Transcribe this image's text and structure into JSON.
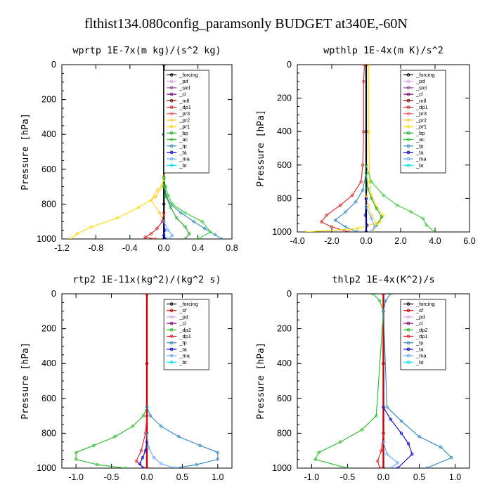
{
  "title": "flthist134.080config_paramsonly  BUDGET at340E,-60N",
  "colors": {
    "_forcing": "#000000",
    "_sf": "#cc0000",
    "_pd": "#d8a0e0",
    "_sicl": "#8a4a9a",
    "_cl": "#800080",
    "_mfl": "#800000",
    "_dp1": "#e02020",
    "_dp2": "#22bb22",
    "_pr3": "#ff6666",
    "_pr2": "#ffcc33",
    "_pr1": "#ffd700",
    "_bp": "#22aa22",
    "_ac": "#33cc33",
    "_tp": "#2e86c1",
    "_ta": "#0000cc",
    "_ma": "#66aaff",
    "_bt": "#00e5ee"
  },
  "chart_data": [
    {
      "type": "line",
      "title": "wprtp   1E-7x(m kg)/(s^2 kg)",
      "ylabel": "Pressure [hPa]",
      "xlim": [
        -1.2,
        0.8
      ],
      "ylim": [
        1000,
        0
      ],
      "xticks": [
        -1.2,
        -0.8,
        -0.4,
        0.0,
        0.4,
        0.8
      ],
      "xticklabels": [
        "-1.2",
        "-0.8",
        "-0.4",
        "0.0",
        "0.4",
        "0.8"
      ],
      "yticks": [
        0,
        200,
        400,
        600,
        800,
        1000
      ],
      "legend": [
        "_forcing",
        "_pd",
        "_sicl",
        "_cl",
        "_mfl",
        "_dp1",
        "_pr3",
        "_pr2",
        "_pr1",
        "_bp",
        "_ac",
        "_tp",
        "_ta",
        "_ma",
        "_bt"
      ],
      "series": [
        {
          "name": "_forcing",
          "x": [
            0,
            0,
            0,
            0
          ],
          "y": [
            0,
            400,
            800,
            1000
          ]
        },
        {
          "name": "_pr1",
          "x": [
            0,
            -0.02,
            -0.1,
            -0.3,
            -0.55,
            -0.85,
            -1.02,
            -1.1
          ],
          "y": [
            650,
            700,
            760,
            820,
            880,
            930,
            970,
            1000
          ]
        },
        {
          "name": "_pr2",
          "x": [
            0,
            -0.02,
            -0.08,
            -0.15,
            -0.05,
            0
          ],
          "y": [
            640,
            690,
            720,
            780,
            850,
            900
          ]
        },
        {
          "name": "_dp1",
          "x": [
            0,
            -0.02,
            -0.08,
            -0.15,
            -0.22,
            -0.1
          ],
          "y": [
            850,
            900,
            940,
            970,
            990,
            1000
          ]
        },
        {
          "name": "_tp",
          "x": [
            0,
            0.02,
            0.08,
            0.2,
            0.35,
            0.48,
            0.6,
            0.68
          ],
          "y": [
            700,
            750,
            800,
            850,
            900,
            940,
            975,
            1000
          ]
        },
        {
          "name": "_ac",
          "x": [
            0,
            0.02,
            0.05,
            0.1,
            0.25,
            0.45,
            0.55,
            0.4
          ],
          "y": [
            650,
            700,
            750,
            800,
            850,
            900,
            960,
            1000
          ]
        },
        {
          "name": "_bp",
          "x": [
            0,
            0.01,
            0.03,
            0.08,
            0.15,
            0.25,
            0.3,
            0.25
          ],
          "y": [
            650,
            700,
            760,
            820,
            880,
            930,
            970,
            1000
          ]
        },
        {
          "name": "_ta",
          "x": [
            0,
            0.01,
            0,
            0.02
          ],
          "y": [
            900,
            950,
            980,
            1000
          ]
        },
        {
          "name": "_ma",
          "x": [
            0,
            0.05,
            0.1,
            0.05
          ],
          "y": [
            900,
            950,
            980,
            1000
          ]
        }
      ]
    },
    {
      "type": "line",
      "title": "wpthlp   1E-4x(m K)/s^2",
      "ylabel": "Pressure [hPa]",
      "xlim": [
        -4.0,
        6.0
      ],
      "ylim": [
        1000,
        0
      ],
      "xticks": [
        -4,
        -2,
        0,
        2,
        4,
        6
      ],
      "xticklabels": [
        "-4.0",
        "-2.0",
        "0.0",
        "2.0",
        "4.0",
        "6.0"
      ],
      "yticks": [
        0,
        200,
        400,
        600,
        800,
        1000
      ],
      "legend": [
        "_forcing",
        "_pd",
        "_sicl",
        "_cl",
        "_mfl",
        "_dp1",
        "_pr3",
        "_pr2",
        "_pr1",
        "_bp",
        "_ac",
        "_tp",
        "_ta",
        "_ma",
        "_bt"
      ],
      "series": [
        {
          "name": "_forcing",
          "x": [
            0,
            0,
            0,
            0
          ],
          "y": [
            0,
            400,
            800,
            1000
          ]
        },
        {
          "name": "_dp1",
          "x": [
            -0.1,
            -0.15,
            -0.15,
            -0.2,
            -0.3,
            -0.8,
            -1.5,
            -2.3,
            -2.6,
            -2.0,
            -1.0
          ],
          "y": [
            0,
            100,
            400,
            600,
            700,
            780,
            840,
            900,
            940,
            970,
            1000
          ]
        },
        {
          "name": "_tp",
          "x": [
            0,
            -0.2,
            -0.6,
            -1.2,
            -1.8,
            -1.2,
            -0.5
          ],
          "y": [
            650,
            750,
            820,
            880,
            930,
            970,
            1000
          ]
        },
        {
          "name": "_pr1",
          "x": [
            0.15,
            0.15,
            0.2,
            0.3,
            0.6,
            1.0,
            0.8,
            -0.5,
            -3.5
          ],
          "y": [
            0,
            400,
            700,
            780,
            850,
            900,
            940,
            980,
            1000
          ]
        },
        {
          "name": "_ac",
          "x": [
            0,
            0.3,
            1.0,
            1.8,
            2.6,
            3.3,
            3.5,
            4.0
          ],
          "y": [
            600,
            700,
            780,
            840,
            880,
            920,
            960,
            1000
          ]
        },
        {
          "name": "_bp",
          "x": [
            0,
            0.1,
            0.3,
            0.6,
            0.9,
            0.6,
            0.3
          ],
          "y": [
            650,
            740,
            800,
            860,
            910,
            960,
            1000
          ]
        },
        {
          "name": "_pr2",
          "x": [
            0,
            0.1,
            0.3,
            0.6,
            0.4
          ],
          "y": [
            780,
            840,
            900,
            950,
            1000
          ]
        },
        {
          "name": "_ta",
          "x": [
            0,
            -0.05,
            0.05,
            0
          ],
          "y": [
            800,
            900,
            960,
            1000
          ]
        },
        {
          "name": "_ma",
          "x": [
            0,
            0.3,
            0.5,
            0.3
          ],
          "y": [
            850,
            920,
            970,
            1000
          ]
        }
      ]
    },
    {
      "type": "line",
      "title": "rtp2   1E-11x(kg^2)/(kg^2 s)",
      "ylabel": "Pressure [hPa]",
      "xlim": [
        -1.2,
        1.2
      ],
      "ylim": [
        1000,
        0
      ],
      "xticks": [
        -1.0,
        -0.5,
        0.0,
        0.5,
        1.0
      ],
      "xticklabels": [
        "-1.0",
        "-0.5",
        "0.0",
        "0.5",
        "1.0"
      ],
      "yticks": [
        0,
        200,
        400,
        600,
        800,
        1000
      ],
      "legend": [
        "_forcing",
        "_sf",
        "_pd",
        "_cl",
        "_dp2",
        "_dp1",
        "_tp",
        "_ta",
        "_ma",
        "_bt"
      ],
      "series": [
        {
          "name": "_forcing",
          "x": [
            0,
            0,
            0,
            0
          ],
          "y": [
            0,
            400,
            800,
            1000
          ]
        },
        {
          "name": "_sf",
          "x": [
            0,
            0,
            0,
            0
          ],
          "y": [
            0,
            400,
            800,
            1000
          ]
        },
        {
          "name": "_dp2",
          "x": [
            0,
            -0.05,
            -0.2,
            -0.45,
            -0.75,
            -1.0,
            -1.0,
            -0.7,
            -0.3
          ],
          "y": [
            650,
            700,
            760,
            820,
            870,
            910,
            950,
            980,
            1000
          ]
        },
        {
          "name": "_dp1",
          "x": [
            0,
            -0.02,
            -0.08,
            -0.15,
            -0.05
          ],
          "y": [
            700,
            800,
            900,
            960,
            1000
          ]
        },
        {
          "name": "_tp",
          "x": [
            0,
            0.05,
            0.2,
            0.45,
            0.75,
            1.0,
            1.0,
            0.7,
            0.4
          ],
          "y": [
            650,
            700,
            760,
            820,
            870,
            910,
            950,
            980,
            1000
          ]
        },
        {
          "name": "_ta",
          "x": [
            0,
            -0.02,
            -0.06,
            -0.1,
            -0.05
          ],
          "y": [
            850,
            900,
            940,
            975,
            1000
          ]
        },
        {
          "name": "_ma",
          "x": [
            0,
            0.02,
            0.1,
            0.2,
            0.4
          ],
          "y": [
            800,
            880,
            940,
            975,
            1000
          ]
        }
      ]
    },
    {
      "type": "line",
      "title": "thlp2   1E-4x(K^2)/s",
      "ylabel": "Pressure [hPa]",
      "xlim": [
        -1.2,
        1.2
      ],
      "ylim": [
        1000,
        0
      ],
      "xticks": [
        -1.0,
        -0.5,
        0.0,
        0.5,
        1.0
      ],
      "xticklabels": [
        "-1.0",
        "-0.5",
        "0.0",
        "0.5",
        "1.0"
      ],
      "yticks": [
        0,
        200,
        400,
        600,
        800,
        1000
      ],
      "legend": [
        "_forcing",
        "_sf",
        "_pd",
        "_cl",
        "_dp2",
        "_dp1",
        "_tp",
        "_ta",
        "_ma",
        "_bt"
      ],
      "series": [
        {
          "name": "_forcing",
          "x": [
            0,
            0,
            0,
            0
          ],
          "y": [
            0,
            400,
            800,
            1000
          ]
        },
        {
          "name": "_sf",
          "x": [
            0,
            0,
            0,
            0
          ],
          "y": [
            0,
            400,
            800,
            1000
          ]
        },
        {
          "name": "_dp2",
          "x": [
            -0.15,
            -0.05,
            0,
            -0.1,
            -0.3,
            -0.6,
            -0.9,
            -0.95,
            -0.5
          ],
          "y": [
            0,
            40,
            100,
            700,
            780,
            850,
            910,
            950,
            1000
          ]
        },
        {
          "name": "_tp",
          "x": [
            0.1,
            0.03,
            0,
            0.05,
            0.25,
            0.5,
            0.8,
            0.95,
            0.6
          ],
          "y": [
            0,
            40,
            100,
            650,
            730,
            820,
            880,
            940,
            1000
          ]
        },
        {
          "name": "_ta",
          "x": [
            0,
            0.1,
            0.25,
            0.35,
            0.4,
            0.2
          ],
          "y": [
            650,
            720,
            800,
            860,
            920,
            1000
          ]
        },
        {
          "name": "_dp1",
          "x": [
            0,
            -0.03,
            -0.08,
            -0.05
          ],
          "y": [
            800,
            900,
            960,
            1000
          ]
        },
        {
          "name": "_ma",
          "x": [
            0,
            0.05,
            0.2,
            0.1
          ],
          "y": [
            850,
            920,
            970,
            1000
          ]
        }
      ]
    }
  ]
}
